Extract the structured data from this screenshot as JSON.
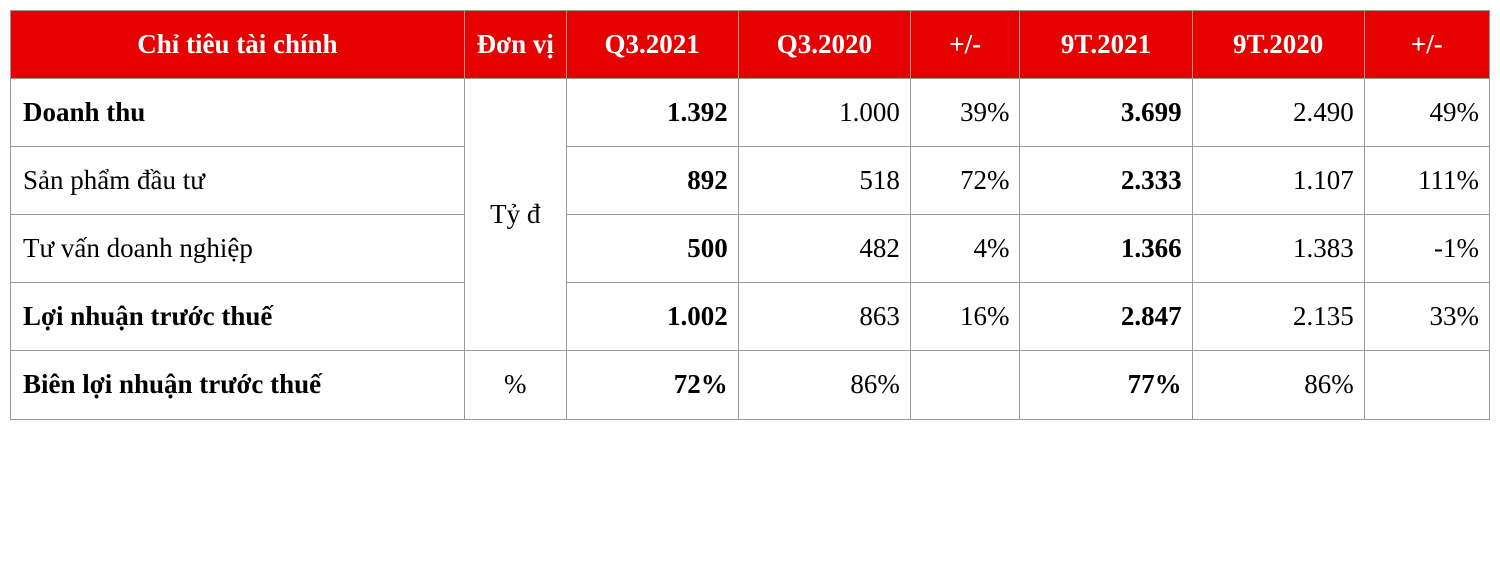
{
  "table": {
    "type": "table",
    "header_bg": "#e60000",
    "header_text_color": "#ffffff",
    "border_color": "#999999",
    "cell_text_color": "#000000",
    "background_color": "#ffffff",
    "font_family": "Times New Roman",
    "header_fontsize": 27,
    "cell_fontsize": 27,
    "columns": [
      {
        "label": "Chỉ tiêu tài chính",
        "width_pct": 29,
        "align": "center"
      },
      {
        "label": "Đơn vị",
        "width_pct": 6.5,
        "align": "center"
      },
      {
        "label": "Q3.2021",
        "width_pct": 11,
        "align": "center"
      },
      {
        "label": "Q3.2020",
        "width_pct": 11,
        "align": "center"
      },
      {
        "label": "+/-",
        "width_pct": 7,
        "align": "center"
      },
      {
        "label": "9T.2021",
        "width_pct": 11,
        "align": "center"
      },
      {
        "label": "9T.2020",
        "width_pct": 11,
        "align": "center"
      },
      {
        "label": "+/-",
        "width_pct": 8,
        "align": "center"
      }
    ],
    "unit_group": {
      "label": "Tỷ đ",
      "rowspan": 4
    },
    "rows": [
      {
        "label": "Doanh thu",
        "label_bold": true,
        "q3_2021": "1.392",
        "q3_2021_bold": true,
        "q3_2020": "1.000",
        "pm1": "39%",
        "nt_2021": "3.699",
        "nt_2021_bold": true,
        "nt_2020": "2.490",
        "pm2": "49%"
      },
      {
        "label": "Sản phẩm đầu tư",
        "label_bold": false,
        "q3_2021": "892",
        "q3_2021_bold": true,
        "q3_2020": "518",
        "pm1": "72%",
        "nt_2021": "2.333",
        "nt_2021_bold": true,
        "nt_2020": "1.107",
        "pm2": "111%"
      },
      {
        "label": "Tư vấn doanh nghiệp",
        "label_bold": false,
        "q3_2021": "500",
        "q3_2021_bold": true,
        "q3_2020": "482",
        "pm1": "4%",
        "nt_2021": "1.366",
        "nt_2021_bold": true,
        "nt_2020": "1.383",
        "pm2": "-1%"
      },
      {
        "label": "Lợi nhuận trước thuế",
        "label_bold": true,
        "q3_2021": "1.002",
        "q3_2021_bold": true,
        "q3_2020": "863",
        "pm1": "16%",
        "nt_2021": "2.847",
        "nt_2021_bold": true,
        "nt_2020": "2.135",
        "pm2": "33%"
      },
      {
        "label": "Biên lợi nhuận trước thuế",
        "label_bold": true,
        "unit": "%",
        "q3_2021": "72%",
        "q3_2021_bold": true,
        "q3_2020": "86%",
        "pm1": "",
        "nt_2021": "77%",
        "nt_2021_bold": true,
        "nt_2020": "86%",
        "pm2": ""
      }
    ]
  }
}
